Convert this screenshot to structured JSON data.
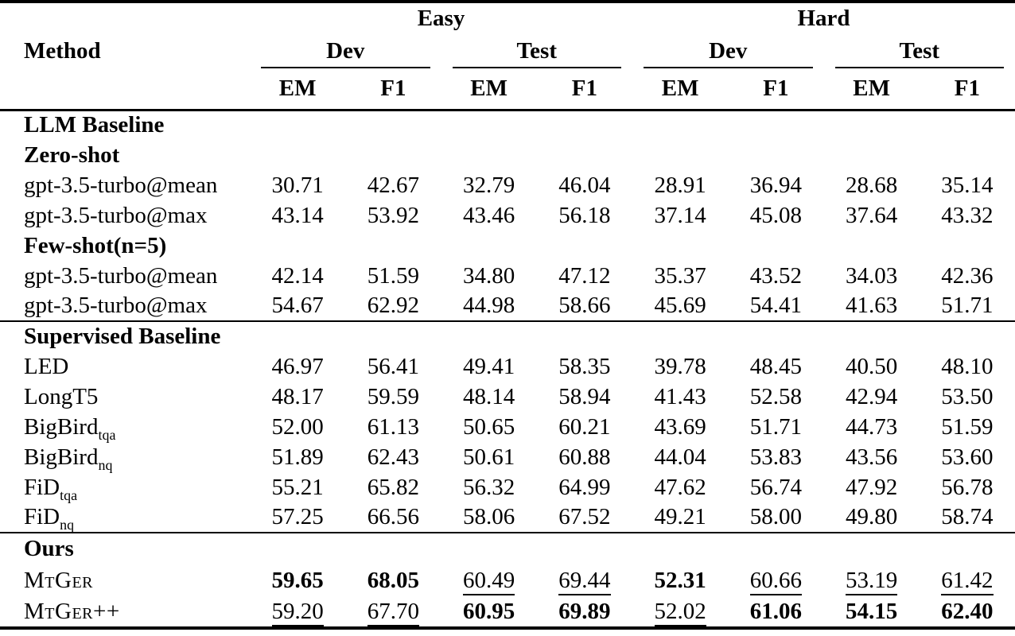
{
  "colors": {
    "text": "#000000",
    "background": "#ffffff"
  },
  "header": {
    "method": "Method",
    "groups": [
      {
        "label": "Easy",
        "subs": [
          "Dev",
          "Test"
        ]
      },
      {
        "label": "Hard",
        "subs": [
          "Dev",
          "Test"
        ]
      }
    ],
    "metrics": [
      "EM",
      "F1"
    ]
  },
  "rows": [
    {
      "type": "section",
      "label": "LLM Baseline"
    },
    {
      "type": "subheader",
      "label": "Zero-shot"
    },
    {
      "type": "data",
      "method": "gpt-3.5-turbo@mean",
      "cells": [
        {
          "t": "30.71",
          "s": "plain"
        },
        {
          "t": "42.67",
          "s": "plain"
        },
        {
          "t": "32.79",
          "s": "plain"
        },
        {
          "t": "46.04",
          "s": "plain"
        },
        {
          "t": "28.91",
          "s": "plain"
        },
        {
          "t": "36.94",
          "s": "plain"
        },
        {
          "t": "28.68",
          "s": "plain"
        },
        {
          "t": "35.14",
          "s": "plain"
        }
      ]
    },
    {
      "type": "data",
      "method": "gpt-3.5-turbo@max",
      "cells": [
        {
          "t": "43.14",
          "s": "plain"
        },
        {
          "t": "53.92",
          "s": "plain"
        },
        {
          "t": "43.46",
          "s": "plain"
        },
        {
          "t": "56.18",
          "s": "plain"
        },
        {
          "t": "37.14",
          "s": "plain"
        },
        {
          "t": "45.08",
          "s": "plain"
        },
        {
          "t": "37.64",
          "s": "plain"
        },
        {
          "t": "43.32",
          "s": "plain"
        }
      ]
    },
    {
      "type": "subheader",
      "label": "Few-shot(n=5)"
    },
    {
      "type": "data",
      "method": "gpt-3.5-turbo@mean",
      "cells": [
        {
          "t": "42.14",
          "s": "plain"
        },
        {
          "t": "51.59",
          "s": "plain"
        },
        {
          "t": "34.80",
          "s": "plain"
        },
        {
          "t": "47.12",
          "s": "plain"
        },
        {
          "t": "35.37",
          "s": "plain"
        },
        {
          "t": "43.52",
          "s": "plain"
        },
        {
          "t": "34.03",
          "s": "plain"
        },
        {
          "t": "42.36",
          "s": "plain"
        }
      ]
    },
    {
      "type": "data",
      "method": "gpt-3.5-turbo@max",
      "cells": [
        {
          "t": "54.67",
          "s": "plain"
        },
        {
          "t": "62.92",
          "s": "plain"
        },
        {
          "t": "44.98",
          "s": "plain"
        },
        {
          "t": "58.66",
          "s": "plain"
        },
        {
          "t": "45.69",
          "s": "plain"
        },
        {
          "t": "54.41",
          "s": "plain"
        },
        {
          "t": "41.63",
          "s": "plain"
        },
        {
          "t": "51.71",
          "s": "plain"
        }
      ]
    },
    {
      "type": "section",
      "label": "Supervised Baseline"
    },
    {
      "type": "data",
      "method": "LED",
      "cells": [
        {
          "t": "46.97",
          "s": "plain"
        },
        {
          "t": "56.41",
          "s": "plain"
        },
        {
          "t": "49.41",
          "s": "plain"
        },
        {
          "t": "58.35",
          "s": "plain"
        },
        {
          "t": "39.78",
          "s": "plain"
        },
        {
          "t": "48.45",
          "s": "plain"
        },
        {
          "t": "40.50",
          "s": "plain"
        },
        {
          "t": "48.10",
          "s": "plain"
        }
      ]
    },
    {
      "type": "data",
      "method": "LongT5",
      "cells": [
        {
          "t": "48.17",
          "s": "plain"
        },
        {
          "t": "59.59",
          "s": "plain"
        },
        {
          "t": "48.14",
          "s": "plain"
        },
        {
          "t": "58.94",
          "s": "plain"
        },
        {
          "t": "41.43",
          "s": "plain"
        },
        {
          "t": "52.58",
          "s": "plain"
        },
        {
          "t": "42.94",
          "s": "plain"
        },
        {
          "t": "53.50",
          "s": "plain"
        }
      ]
    },
    {
      "type": "data",
      "method": "BigBird",
      "sub": "tqa",
      "cells": [
        {
          "t": "52.00",
          "s": "plain"
        },
        {
          "t": "61.13",
          "s": "plain"
        },
        {
          "t": "50.65",
          "s": "plain"
        },
        {
          "t": "60.21",
          "s": "plain"
        },
        {
          "t": "43.69",
          "s": "plain"
        },
        {
          "t": "51.71",
          "s": "plain"
        },
        {
          "t": "44.73",
          "s": "plain"
        },
        {
          "t": "51.59",
          "s": "plain"
        }
      ]
    },
    {
      "type": "data",
      "method": "BigBird",
      "sub": "nq",
      "cells": [
        {
          "t": "51.89",
          "s": "plain"
        },
        {
          "t": "62.43",
          "s": "plain"
        },
        {
          "t": "50.61",
          "s": "plain"
        },
        {
          "t": "60.88",
          "s": "plain"
        },
        {
          "t": "44.04",
          "s": "plain"
        },
        {
          "t": "53.83",
          "s": "plain"
        },
        {
          "t": "43.56",
          "s": "plain"
        },
        {
          "t": "53.60",
          "s": "plain"
        }
      ]
    },
    {
      "type": "data",
      "method": "FiD",
      "sub": "tqa",
      "cells": [
        {
          "t": "55.21",
          "s": "plain"
        },
        {
          "t": "65.82",
          "s": "plain"
        },
        {
          "t": "56.32",
          "s": "plain"
        },
        {
          "t": "64.99",
          "s": "plain"
        },
        {
          "t": "47.62",
          "s": "plain"
        },
        {
          "t": "56.74",
          "s": "plain"
        },
        {
          "t": "47.92",
          "s": "plain"
        },
        {
          "t": "56.78",
          "s": "plain"
        }
      ]
    },
    {
      "type": "data",
      "method": "FiD",
      "sub": "nq",
      "cells": [
        {
          "t": "57.25",
          "s": "plain"
        },
        {
          "t": "66.56",
          "s": "plain"
        },
        {
          "t": "58.06",
          "s": "plain"
        },
        {
          "t": "67.52",
          "s": "plain"
        },
        {
          "t": "49.21",
          "s": "plain"
        },
        {
          "t": "58.00",
          "s": "plain"
        },
        {
          "t": "49.80",
          "s": "plain"
        },
        {
          "t": "58.74",
          "s": "plain"
        }
      ]
    },
    {
      "type": "section",
      "label": "Ours"
    },
    {
      "type": "data",
      "method": "MtGer",
      "smallcaps": true,
      "cells": [
        {
          "t": "59.65",
          "s": "bold"
        },
        {
          "t": "68.05",
          "s": "bold"
        },
        {
          "t": "60.49",
          "s": "underline"
        },
        {
          "t": "69.44",
          "s": "underline"
        },
        {
          "t": "52.31",
          "s": "bold"
        },
        {
          "t": "60.66",
          "s": "underline"
        },
        {
          "t": "53.19",
          "s": "underline"
        },
        {
          "t": "61.42",
          "s": "underline"
        }
      ]
    },
    {
      "type": "data",
      "method": "MtGer++",
      "smallcaps": true,
      "cells": [
        {
          "t": "59.20",
          "s": "underline"
        },
        {
          "t": "67.70",
          "s": "underline"
        },
        {
          "t": "60.95",
          "s": "bold"
        },
        {
          "t": "69.89",
          "s": "bold"
        },
        {
          "t": "52.02",
          "s": "underline"
        },
        {
          "t": "61.06",
          "s": "bold"
        },
        {
          "t": "54.15",
          "s": "bold"
        },
        {
          "t": "62.40",
          "s": "bold"
        }
      ]
    }
  ]
}
